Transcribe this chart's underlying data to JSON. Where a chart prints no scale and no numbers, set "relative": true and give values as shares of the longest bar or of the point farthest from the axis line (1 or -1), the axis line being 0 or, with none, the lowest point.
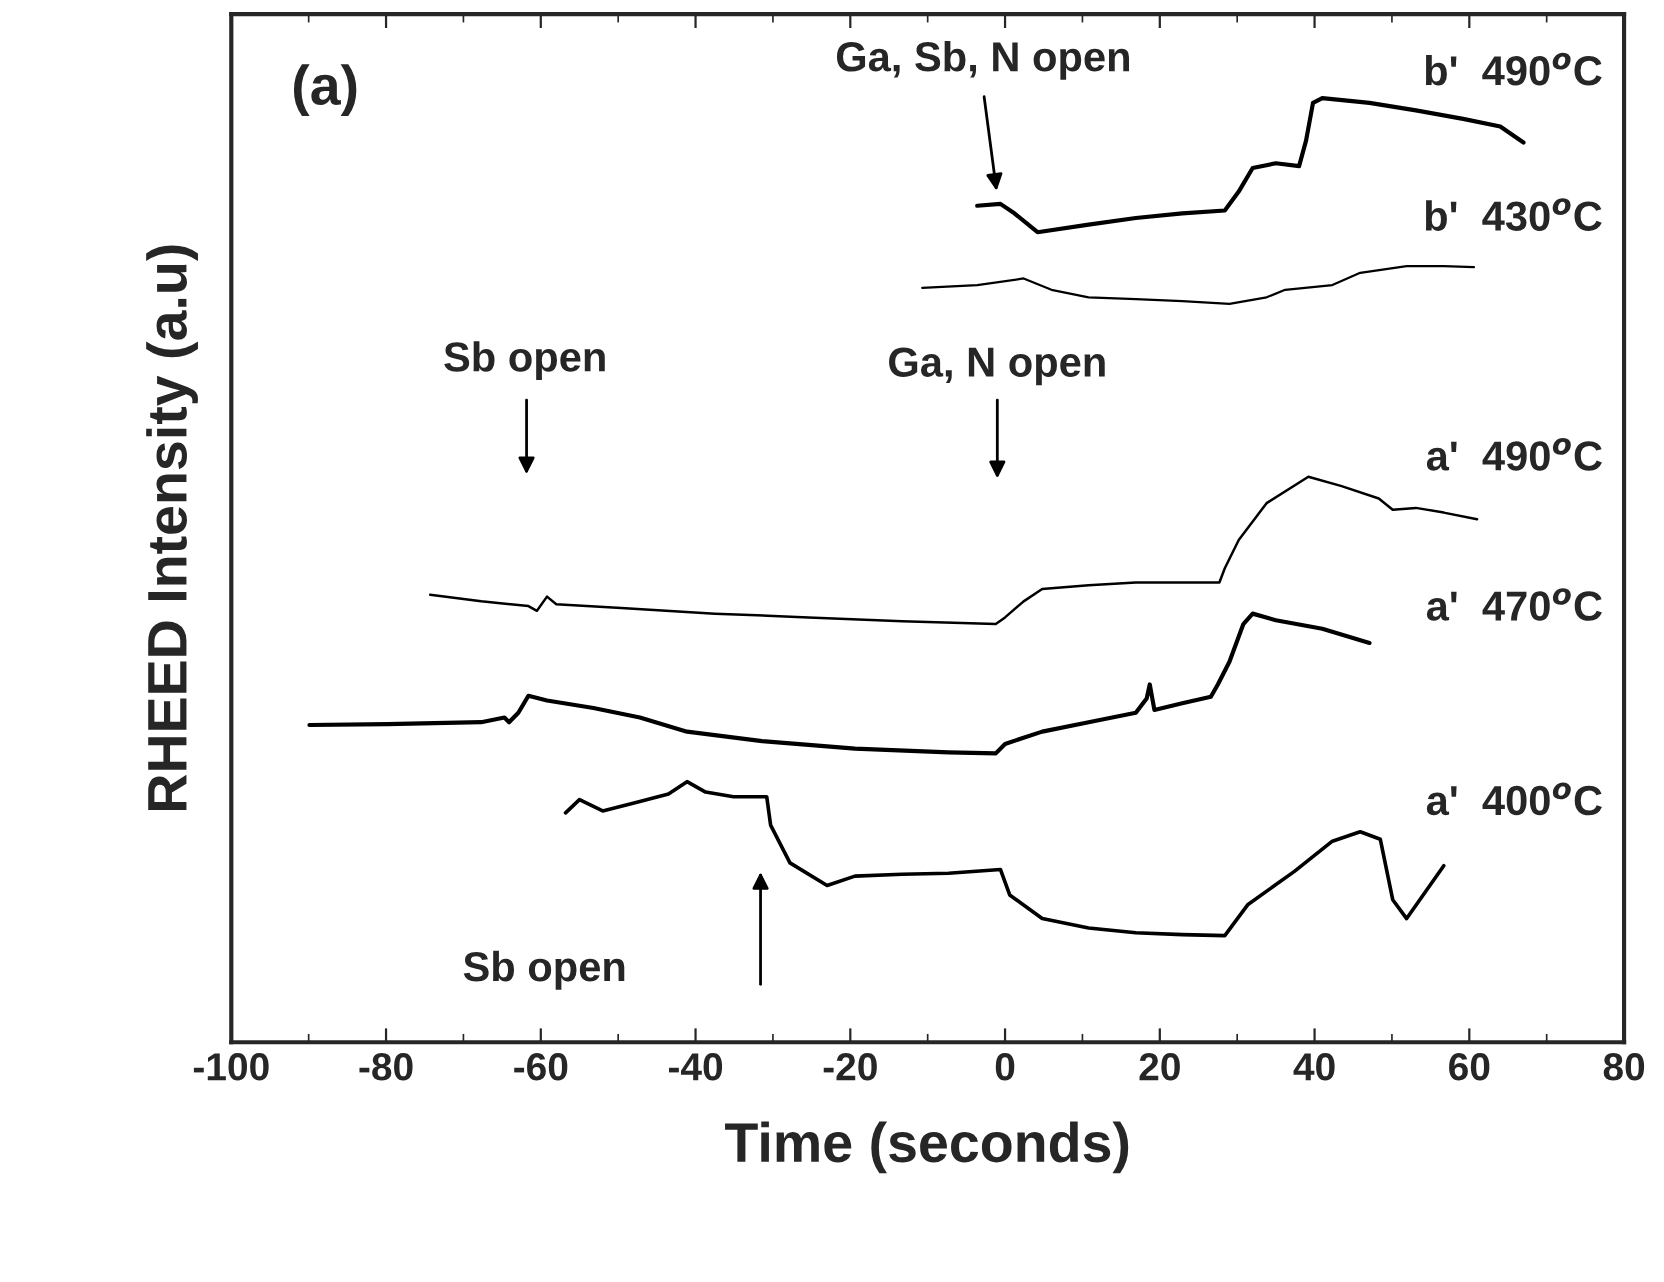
{
  "chart_data": {
    "type": "line",
    "relative": true,
    "xlabel": "Time (seconds)",
    "ylabel": "RHEED Intensity (a.u)",
    "xlim": [
      -100,
      80
    ],
    "xticks": [
      -100,
      -80,
      -60,
      -40,
      -20,
      0,
      20,
      40,
      60,
      80
    ],
    "grid": false,
    "marker": "none",
    "line_style": "solid",
    "annotations": [
      "(a)",
      {
        "text": "Ga, Sb, N open",
        "x": -1.0,
        "y": 0.896
      },
      "Sb open",
      "Ga, N open",
      "Sb open"
    ],
    "series": [
      {
        "name": "b'  490$^{o}$C",
        "color": "#000000",
        "x": [
          -3.6,
          -0.6,
          1.2,
          4.2,
          10.8,
          16.9,
          22.9,
          28.4,
          30.2,
          32.0,
          35.0,
          38.0,
          38.9,
          39.8,
          41.0,
          47.1,
          53.1,
          59.2,
          64.0,
          67.0
        ],
        "values": [
          0.886,
          0.888,
          0.878,
          0.858,
          0.866,
          0.873,
          0.878,
          0.881,
          0.901,
          0.926,
          0.931,
          0.928,
          0.955,
          0.995,
          1.0,
          0.995,
          0.987,
          0.978,
          0.97,
          0.953
        ]
      },
      {
        "name": "b'  430$^{o}$C",
        "color": "#000000",
        "x": [
          -10.7,
          -3.6,
          2.4,
          6.0,
          10.8,
          16.9,
          22.9,
          29.0,
          33.8,
          36.2,
          42.3,
          45.9,
          51.9,
          56.7,
          60.6
        ],
        "values": [
          0.799,
          0.802,
          0.809,
          0.797,
          0.789,
          0.787,
          0.785,
          0.782,
          0.789,
          0.797,
          0.802,
          0.815,
          0.822,
          0.822,
          0.821
        ]
      },
      {
        "name": "a'  490$^{o}$C",
        "color": "#000000",
        "x": [
          -74.3,
          -67.7,
          -61.6,
          -60.5,
          -59.2,
          -58.0,
          -49.6,
          -37.5,
          -25.4,
          -13.3,
          -1.2,
          0.0,
          2.4,
          4.8,
          10.8,
          16.9,
          27.7,
          28.4,
          30.2,
          33.8,
          39.2,
          43.5,
          48.3,
          50.1,
          53.1,
          56.7,
          61.0
        ],
        "values": [
          0.474,
          0.467,
          0.462,
          0.457,
          0.472,
          0.464,
          0.46,
          0.454,
          0.45,
          0.446,
          0.443,
          0.45,
          0.467,
          0.48,
          0.484,
          0.487,
          0.487,
          0.502,
          0.532,
          0.571,
          0.599,
          0.589,
          0.576,
          0.564,
          0.566,
          0.561,
          0.554
        ]
      },
      {
        "name": "a'  470$^{o}$C",
        "color": "#000000",
        "x": [
          -89.9,
          -79.8,
          -67.7,
          -64.7,
          -64.1,
          -62.9,
          -61.6,
          -59.2,
          -53.2,
          -47.2,
          -41.1,
          -31.4,
          -19.4,
          -7.3,
          -1.2,
          0.0,
          4.8,
          10.8,
          16.9,
          18.3,
          18.7,
          19.3,
          22.9,
          26.6,
          27.5,
          29.0,
          30.8,
          32.0,
          35.0,
          41.0,
          47.1
        ],
        "values": [
          0.336,
          0.337,
          0.339,
          0.344,
          0.339,
          0.349,
          0.367,
          0.362,
          0.354,
          0.344,
          0.329,
          0.319,
          0.311,
          0.307,
          0.306,
          0.316,
          0.329,
          0.339,
          0.349,
          0.364,
          0.379,
          0.352,
          0.359,
          0.366,
          0.379,
          0.403,
          0.443,
          0.454,
          0.447,
          0.438,
          0.423
        ]
      },
      {
        "name": "a'  400$^{o}$C",
        "color": "#000000",
        "x": [
          -56.8,
          -55.0,
          -52.0,
          -47.2,
          -43.5,
          -41.1,
          -38.7,
          -35.1,
          -30.8,
          -30.3,
          -27.8,
          -23.0,
          -19.4,
          -13.3,
          -7.3,
          -0.6,
          0.6,
          4.8,
          10.8,
          16.9,
          22.9,
          28.4,
          31.4,
          37.4,
          42.3,
          45.9,
          48.5,
          50.1,
          51.9,
          56.7
        ],
        "values": [
          0.243,
          0.257,
          0.245,
          0.255,
          0.263,
          0.276,
          0.265,
          0.26,
          0.26,
          0.23,
          0.19,
          0.166,
          0.176,
          0.178,
          0.179,
          0.183,
          0.156,
          0.131,
          0.121,
          0.116,
          0.114,
          0.113,
          0.146,
          0.181,
          0.213,
          0.223,
          0.215,
          0.151,
          0.131,
          0.187
        ]
      }
    ]
  }
}
